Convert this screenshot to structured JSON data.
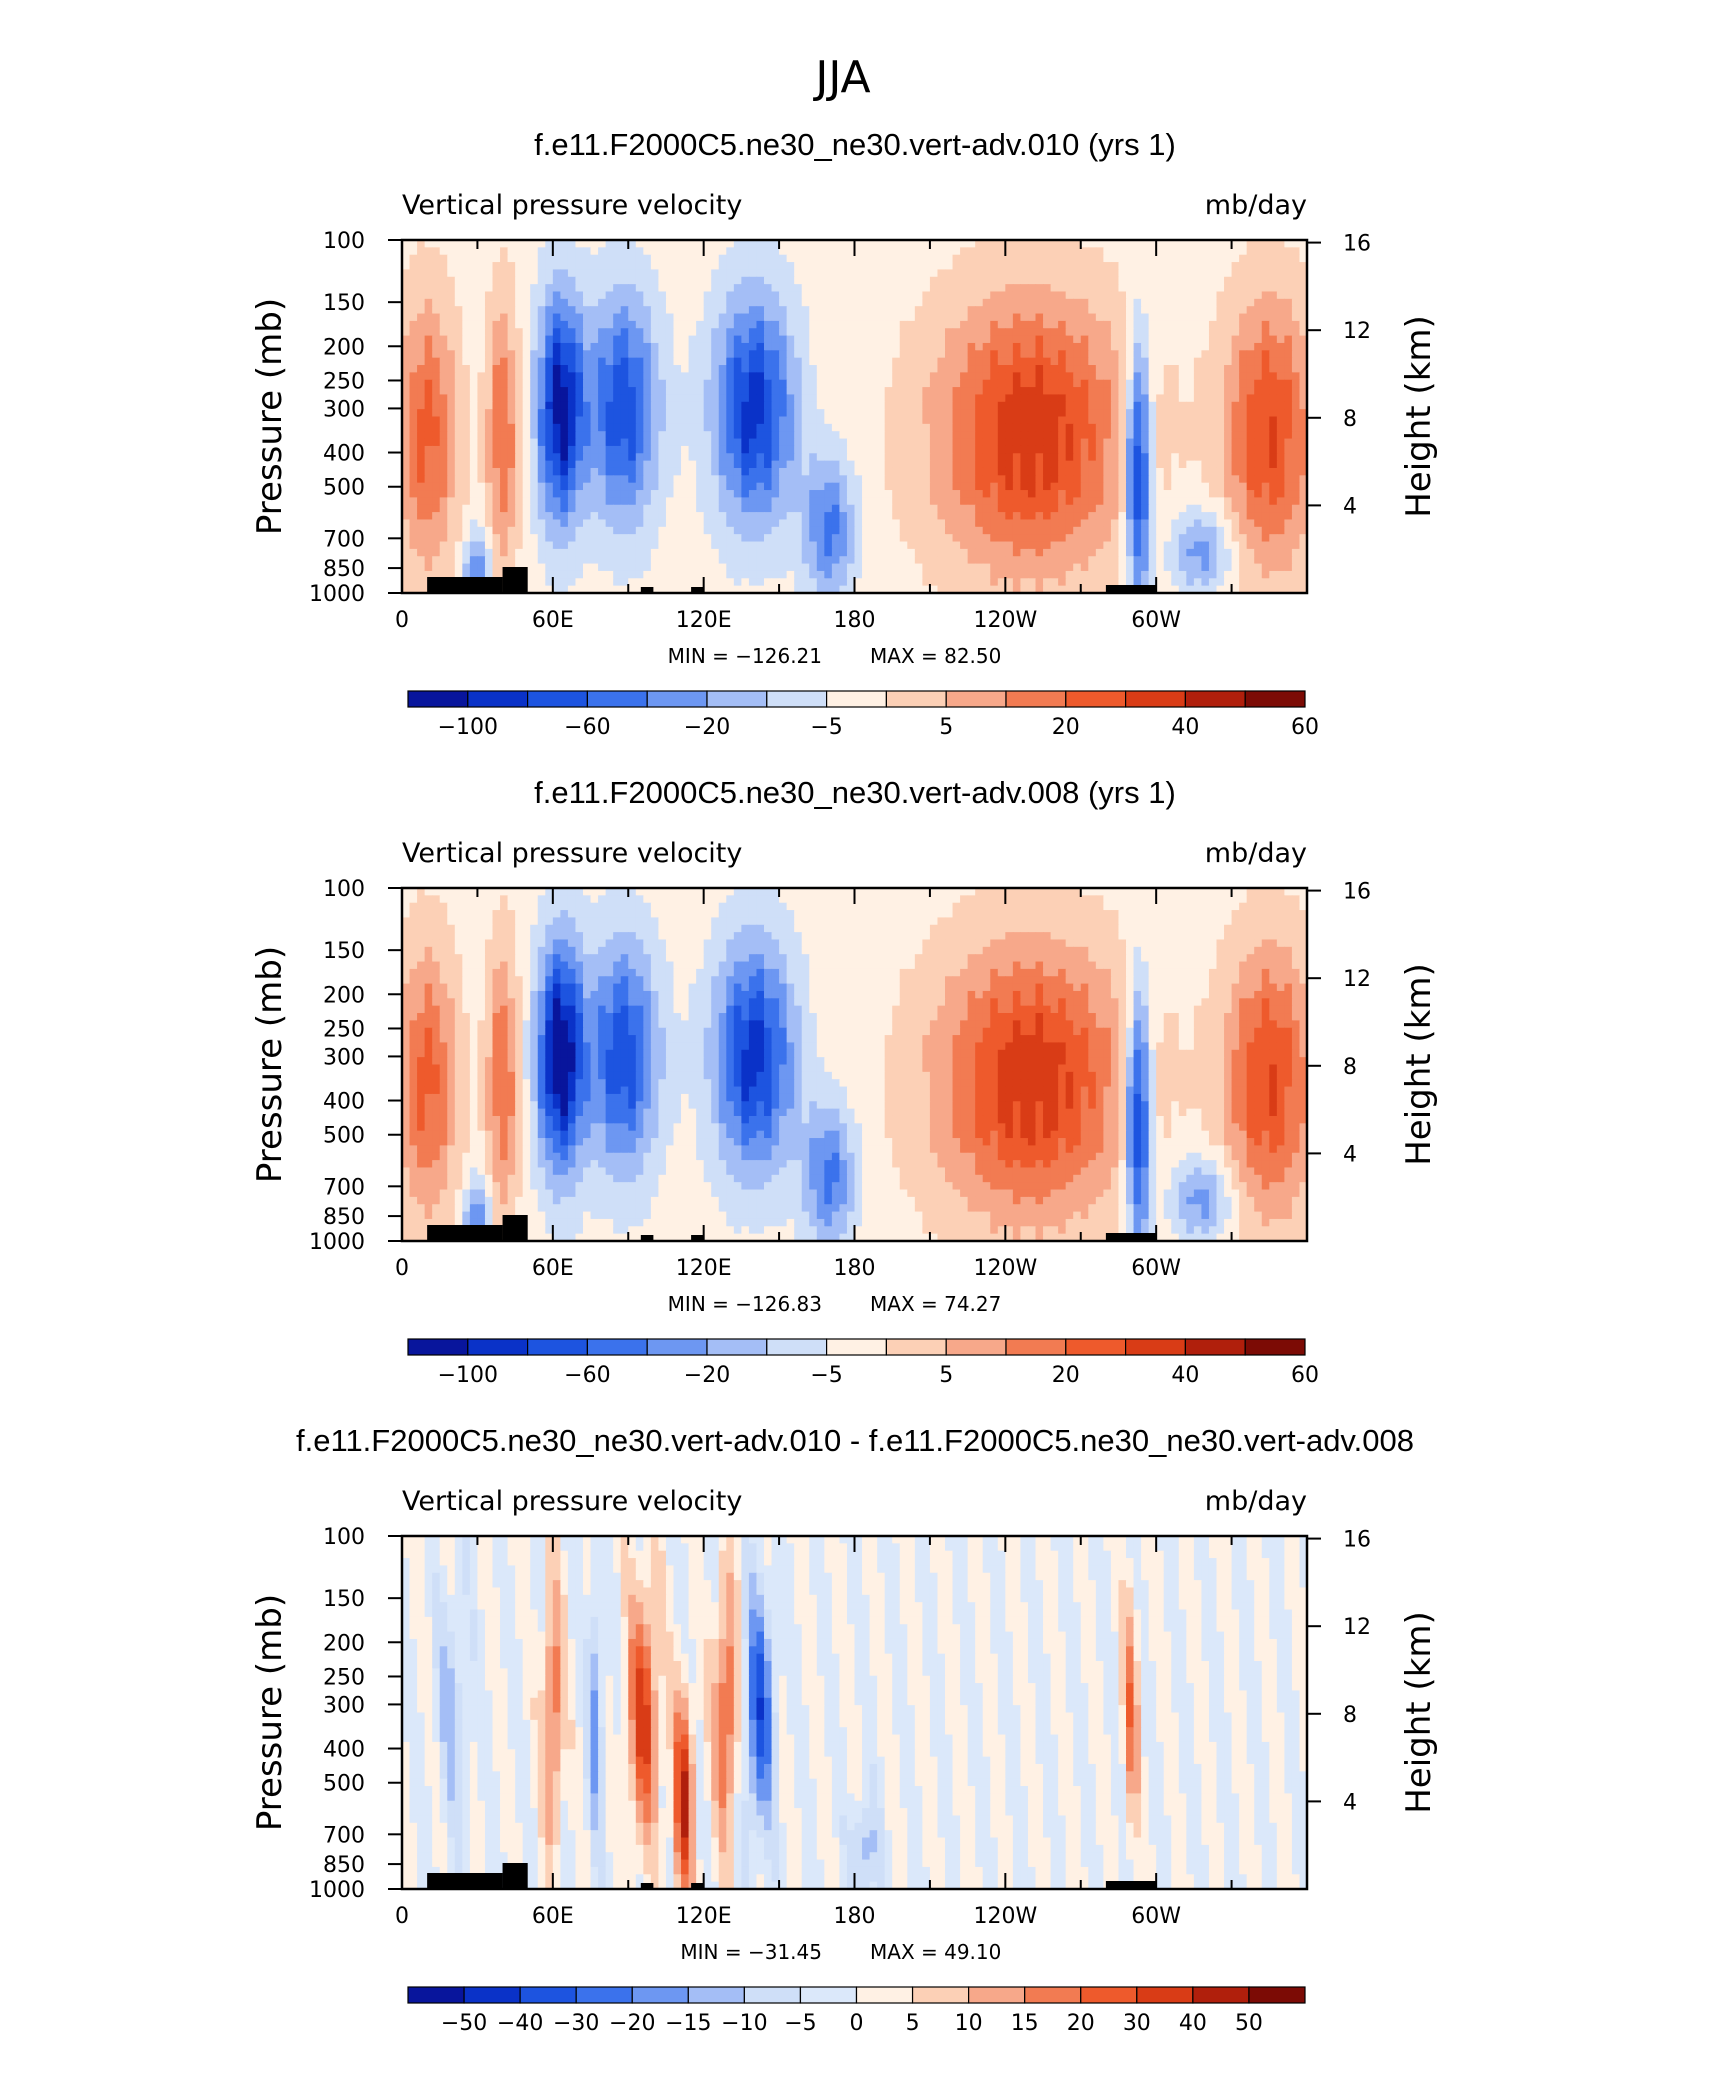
{
  "figure": {
    "title": "JJA"
  },
  "chart_data": [
    {
      "type": "heatmap",
      "title": "f.e11.F2000C5.ne30_ne30.vert-adv.010 (yrs 1)",
      "left_string": "Vertical pressure velocity",
      "right_string": "mb/day",
      "ylabel": "Pressure (mb)",
      "y2label": "Height (km)",
      "x_ticks": [
        "0",
        "60E",
        "120E",
        "180",
        "120W",
        "60W"
      ],
      "y_ticks": [
        "100",
        "150",
        "200",
        "250",
        "300",
        "400",
        "500",
        "700",
        "850",
        "1000"
      ],
      "y2_ticks": [
        "16",
        "12",
        "8",
        "4"
      ],
      "min_label": "MIN = −126.21",
      "max_label": "MAX =   82.50",
      "min": -126.21,
      "max": 82.5,
      "colorbar_labels": [
        "−100",
        "−60",
        "−20",
        "−5",
        "5",
        "20",
        "40",
        "60"
      ],
      "colorbar_colors": [
        "#08159c",
        "#0a32c8",
        "#1d54e0",
        "#3b72ec",
        "#6d97f2",
        "#a4bef6",
        "#cfdff8",
        "#fff1e4",
        "#fcd0b6",
        "#f7a88a",
        "#f27b52",
        "#ee5a2c",
        "#d93c16",
        "#b01f0c",
        "#7c0b05"
      ]
    },
    {
      "type": "heatmap",
      "title": "f.e11.F2000C5.ne30_ne30.vert-adv.008 (yrs 1)",
      "left_string": "Vertical pressure velocity",
      "right_string": "mb/day",
      "ylabel": "Pressure (mb)",
      "y2label": "Height (km)",
      "x_ticks": [
        "0",
        "60E",
        "120E",
        "180",
        "120W",
        "60W"
      ],
      "y_ticks": [
        "100",
        "150",
        "200",
        "250",
        "300",
        "400",
        "500",
        "700",
        "850",
        "1000"
      ],
      "y2_ticks": [
        "16",
        "12",
        "8",
        "4"
      ],
      "min_label": "MIN = −126.83",
      "max_label": "MAX =   74.27",
      "min": -126.83,
      "max": 74.27,
      "colorbar_labels": [
        "−100",
        "−60",
        "−20",
        "−5",
        "5",
        "20",
        "40",
        "60"
      ],
      "colorbar_colors": [
        "#08159c",
        "#0a32c8",
        "#1d54e0",
        "#3b72ec",
        "#6d97f2",
        "#a4bef6",
        "#cfdff8",
        "#fff1e4",
        "#fcd0b6",
        "#f7a88a",
        "#f27b52",
        "#ee5a2c",
        "#d93c16",
        "#b01f0c",
        "#7c0b05"
      ]
    },
    {
      "type": "heatmap",
      "title": "f.e11.F2000C5.ne30_ne30.vert-adv.010 - f.e11.F2000C5.ne30_ne30.vert-adv.008",
      "left_string": "Vertical pressure velocity",
      "right_string": "mb/day",
      "ylabel": "Pressure (mb)",
      "y2label": "Height (km)",
      "x_ticks": [
        "0",
        "60E",
        "120E",
        "180",
        "120W",
        "60W"
      ],
      "y_ticks": [
        "100",
        "150",
        "200",
        "250",
        "300",
        "400",
        "500",
        "700",
        "850",
        "1000"
      ],
      "y2_ticks": [
        "16",
        "12",
        "8",
        "4"
      ],
      "min_label": "MIN = −31.45",
      "max_label": "MAX =   49.10",
      "min": -31.45,
      "max": 49.1,
      "colorbar_labels": [
        "−50",
        "−40",
        "−30",
        "−20",
        "−15",
        "−10",
        "−5",
        "0",
        "5",
        "10",
        "15",
        "20",
        "30",
        "40",
        "50"
      ],
      "colorbar_colors": [
        "#08159c",
        "#0a32c8",
        "#1d54e0",
        "#3b72ec",
        "#6d97f2",
        "#a4bef6",
        "#cfdff8",
        "#dbe8fa",
        "#fff1e4",
        "#fcd0b6",
        "#f7a88a",
        "#f27b52",
        "#ee5a2c",
        "#d93c16",
        "#b01f0c",
        "#7c0b05"
      ]
    }
  ]
}
